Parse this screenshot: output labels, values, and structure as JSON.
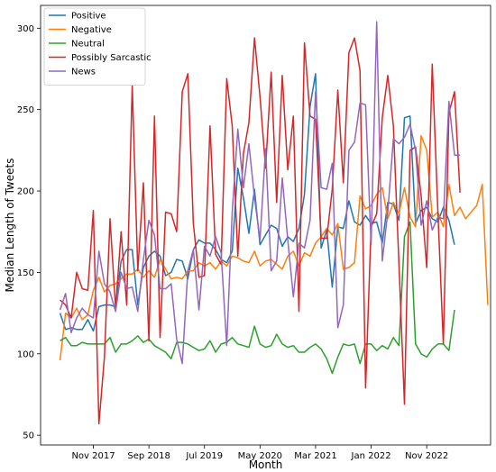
{
  "chart_data": {
    "type": "line",
    "title": "",
    "xlabel": "Month",
    "ylabel": "Median Length of Tweets",
    "x_tick_labels": [
      "Nov 2017",
      "Sep 2018",
      "Jul 2019",
      "May 2020",
      "Mar 2021",
      "Jan 2022",
      "Nov 2022"
    ],
    "x_tick_positions": [
      6,
      16,
      26,
      36,
      46,
      56,
      66
    ],
    "xlim": [
      -3.5,
      77.5
    ],
    "y_ticks": [
      50,
      100,
      150,
      200,
      250,
      300
    ],
    "ylim": [
      44,
      314
    ],
    "grid": false,
    "legend_position": "top-left",
    "series": [
      {
        "name": "Positive",
        "color": "#1f77b4",
        "values": [
          125,
          115,
          116,
          115,
          115,
          121,
          114,
          129,
          130,
          130,
          129,
          157,
          164,
          164,
          130,
          153,
          160,
          163,
          160,
          148,
          150,
          158,
          157,
          146,
          164,
          170,
          168,
          168,
          164,
          158,
          156,
          163,
          214,
          196,
          174,
          201,
          167,
          173,
          179,
          177,
          166,
          172,
          169,
          177,
          198,
          252,
          272,
          165,
          176,
          141,
          178,
          177,
          194,
          181,
          179,
          185,
          180,
          181,
          168,
          193,
          192,
          182,
          245,
          246,
          180,
          188,
          190,
          183,
          181,
          190,
          182,
          167
        ]
      },
      {
        "name": "Negative",
        "color": "#ff7f0e",
        "values": [
          96,
          125,
          122,
          128,
          121,
          124,
          139,
          147,
          138,
          142,
          143,
          146,
          149,
          149,
          152,
          147,
          151,
          147,
          158,
          152,
          146,
          147,
          146,
          151,
          151,
          156,
          154,
          156,
          152,
          157,
          154,
          160,
          159,
          157,
          156,
          163,
          154,
          157,
          158,
          155,
          152,
          160,
          163,
          154,
          162,
          160,
          168,
          172,
          177,
          173,
          180,
          152,
          153,
          156,
          197,
          189,
          191,
          198,
          202,
          183,
          193,
          186,
          202,
          184,
          178,
          234,
          225,
          184,
          187,
          178,
          204,
          185,
          190,
          183,
          187,
          191,
          204,
          130
        ]
      },
      {
        "name": "Neutral",
        "color": "#2ca02c",
        "values": [
          108,
          110,
          105,
          105,
          107,
          106,
          106,
          106,
          106,
          110,
          101,
          106,
          106,
          108,
          111,
          107,
          109,
          105,
          103,
          101,
          97,
          107,
          107,
          106,
          104,
          102,
          103,
          108,
          101,
          106,
          107,
          110,
          106,
          105,
          104,
          117,
          106,
          104,
          105,
          112,
          106,
          104,
          105,
          101,
          101,
          104,
          106,
          103,
          97,
          88,
          98,
          106,
          105,
          106,
          94,
          106,
          106,
          102,
          105,
          103,
          110,
          105,
          172,
          181,
          106,
          100,
          98,
          103,
          106,
          106,
          102,
          127
        ]
      },
      {
        "name": "Possibly Sarcastic",
        "color": "#d62728",
        "values": [
          133,
          130,
          122,
          150,
          140,
          139,
          188,
          57,
          98,
          183,
          128,
          175,
          130,
          265,
          151,
          205,
          108,
          246,
          110,
          187,
          186,
          175,
          261,
          272,
          180,
          147,
          148,
          240,
          161,
          155,
          269,
          240,
          160,
          223,
          242,
          294,
          258,
          214,
          273,
          193,
          271,
          213,
          246,
          126,
          291,
          246,
          244,
          171,
          171,
          201,
          262,
          205,
          285,
          294,
          274,
          79,
          178,
          186,
          245,
          271,
          240,
          155,
          69,
          225,
          227,
          197,
          153,
          278,
          188,
          106,
          248,
          261,
          199
        ]
      },
      {
        "name": "News",
        "color": "#9467bd",
        "values": [
          127,
          137,
          113,
          122,
          128,
          124,
          122,
          163,
          143,
          138,
          126,
          150,
          140,
          141,
          126,
          158,
          182,
          173,
          140,
          140,
          143,
          109,
          94,
          151,
          164,
          127,
          166,
          160,
          172,
          162,
          105,
          187,
          238,
          202,
          229,
          196,
          170,
          226,
          151,
          157,
          208,
          170,
          135,
          168,
          165,
          182,
          261,
          202,
          201,
          217,
          116,
          130,
          225,
          230,
          254,
          253,
          167,
          304,
          157,
          187,
          232,
          229,
          233,
          241,
          225,
          179,
          194,
          176,
          184,
          183,
          255,
          222,
          222
        ]
      }
    ]
  }
}
